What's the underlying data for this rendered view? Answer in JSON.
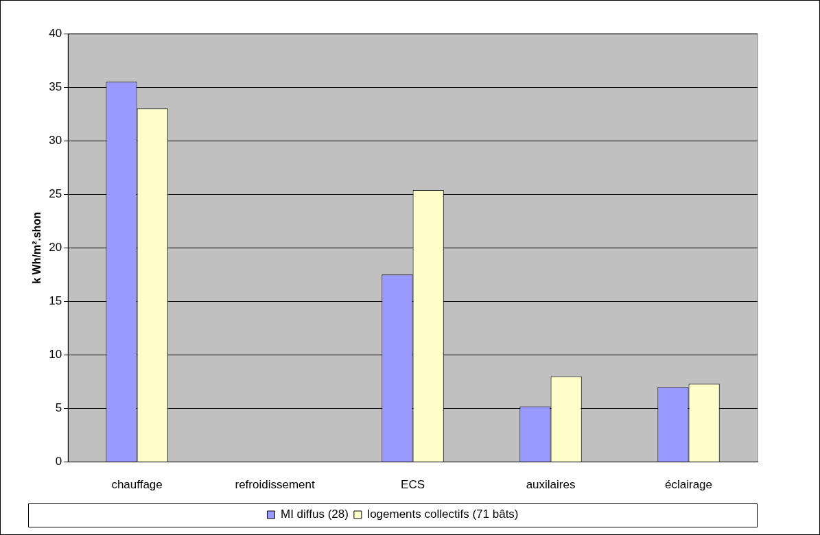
{
  "chart_data": {
    "type": "bar",
    "ylabel": "k Wh/m².shon",
    "categories": [
      "chauffage",
      "refroidissement",
      "ECS",
      "auxilaires",
      "éclairage"
    ],
    "series": [
      {
        "name": "MI diffus (28)",
        "color": "#9999ff",
        "values": [
          35.5,
          0,
          17.5,
          5.2,
          7.0
        ]
      },
      {
        "name": "logements collectifs (71 bâts)",
        "color": "#ffffcc",
        "values": [
          33.0,
          0,
          25.4,
          8.0,
          7.3
        ]
      }
    ],
    "ylim": [
      0,
      40
    ],
    "yticks": [
      0,
      5,
      10,
      15,
      20,
      25,
      30,
      35,
      40
    ],
    "grid": "y",
    "legend": "bottom"
  }
}
